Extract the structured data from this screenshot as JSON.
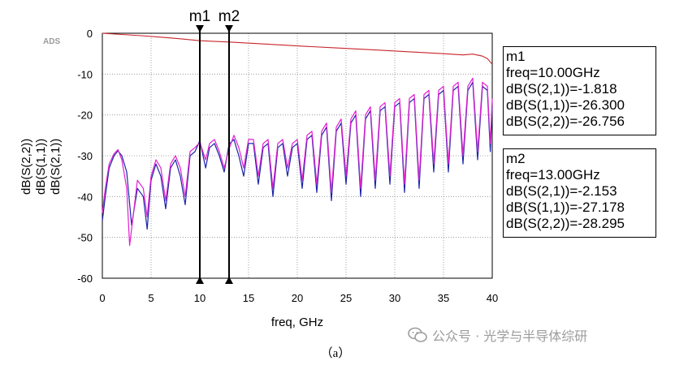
{
  "chart_data": {
    "type": "line",
    "badge": "ADS",
    "xlabel": "freq, GHz",
    "xlim": [
      0,
      40
    ],
    "ylim": [
      -60,
      0
    ],
    "xticks": [
      0,
      5,
      10,
      15,
      20,
      25,
      30,
      35,
      40
    ],
    "yticks": [
      0,
      -10,
      -20,
      -30,
      -40,
      -50,
      -60
    ],
    "legend": [
      "dB(S(2,2))",
      "dB(S(1,1))",
      "dB(S(2,1))"
    ],
    "series": [
      {
        "name": "dB(S(2,1))",
        "color": "#c8242b",
        "x": [
          0,
          2,
          4,
          6,
          8,
          10,
          13,
          16,
          20,
          24,
          28,
          32,
          35,
          37,
          38,
          39,
          39.5,
          40
        ],
        "y": [
          0,
          -0.3,
          -0.6,
          -0.95,
          -1.35,
          -1.818,
          -2.153,
          -2.55,
          -3.1,
          -3.6,
          -4.1,
          -4.6,
          -5.0,
          -5.3,
          -5.1,
          -5.6,
          -6.2,
          -7.6
        ]
      },
      {
        "name": "dB(S(1,1))",
        "color": "#1a24a8",
        "x": [
          0,
          0.3,
          0.7,
          1.2,
          1.6,
          2.0,
          2.5,
          3.0,
          3.6,
          4.2,
          4.6,
          5.0,
          5.5,
          6.0,
          6.5,
          7.0,
          7.5,
          8.0,
          8.5,
          9.0,
          9.5,
          10.0,
          10.6,
          11.0,
          11.5,
          12.0,
          12.5,
          13.0,
          13.5,
          14.0,
          14.5,
          15.0,
          15.5,
          16.0,
          16.5,
          17.0,
          17.5,
          18.0,
          18.5,
          19.0,
          19.5,
          20.0,
          20.5,
          21.0,
          21.5,
          22.0,
          22.5,
          23.0,
          23.5,
          24.0,
          24.5,
          25.0,
          25.5,
          26.0,
          26.5,
          27.0,
          27.5,
          28.0,
          28.5,
          29.0,
          29.5,
          30.0,
          30.5,
          31.0,
          31.5,
          32.0,
          32.5,
          33.0,
          33.5,
          34.0,
          34.5,
          35.0,
          35.5,
          36.0,
          36.5,
          37.0,
          37.5,
          38.0,
          38.5,
          39.0,
          39.5,
          39.8,
          40.0
        ],
        "y": [
          -46,
          -40,
          -33,
          -30,
          -28.8,
          -30,
          -34,
          -47,
          -38,
          -40,
          -48,
          -36,
          -32,
          -35,
          -43,
          -33,
          -31,
          -35,
          -42,
          -30,
          -29,
          -26.3,
          -33,
          -28,
          -27,
          -30,
          -34,
          -27.178,
          -26,
          -30,
          -35,
          -27,
          -27,
          -37,
          -28,
          -27,
          -40,
          -28,
          -27,
          -35,
          -28,
          -27,
          -38,
          -26,
          -25,
          -39,
          -25,
          -23,
          -41,
          -24,
          -22,
          -37,
          -22,
          -20,
          -40,
          -21,
          -19,
          -38,
          -19,
          -18,
          -37,
          -18,
          -17,
          -39,
          -17,
          -16,
          -38,
          -16,
          -15,
          -34,
          -15,
          -14,
          -34,
          -14,
          -13,
          -32,
          -14,
          -12,
          -31,
          -13,
          -14,
          -29,
          -18
        ]
      },
      {
        "name": "dB(S(2,2))",
        "color": "#e21fd0",
        "x": [
          0,
          0.3,
          0.7,
          1.2,
          1.6,
          2.0,
          2.5,
          2.8,
          3.6,
          4.2,
          4.6,
          5.0,
          5.5,
          6.0,
          6.5,
          7.0,
          7.5,
          8.0,
          8.5,
          9.0,
          9.5,
          10.0,
          10.6,
          11.0,
          11.5,
          12.0,
          12.5,
          13.0,
          13.5,
          14.0,
          14.5,
          15.0,
          15.5,
          16.0,
          16.5,
          17.0,
          17.5,
          18.0,
          18.5,
          19.0,
          19.5,
          20.0,
          20.5,
          21.0,
          21.5,
          22.0,
          22.5,
          23.0,
          23.5,
          24.0,
          24.5,
          25.0,
          25.5,
          26.0,
          26.5,
          27.0,
          27.5,
          28.0,
          28.5,
          29.0,
          29.5,
          30.0,
          30.5,
          31.0,
          31.5,
          32.0,
          32.5,
          33.0,
          33.5,
          34.0,
          34.5,
          35.0,
          35.5,
          36.0,
          36.5,
          37.0,
          37.5,
          38.0,
          38.5,
          39.0,
          39.5,
          39.8,
          40.0
        ],
        "y": [
          -44,
          -38,
          -32,
          -29.5,
          -28.5,
          -31,
          -38,
          -52,
          -36,
          -38,
          -45,
          -35,
          -31,
          -33,
          -41,
          -32,
          -30,
          -33,
          -40,
          -29,
          -28,
          -26.756,
          -31,
          -27,
          -26,
          -29,
          -33,
          -28.295,
          -25,
          -28,
          -33,
          -26,
          -26,
          -35,
          -27,
          -26,
          -38,
          -27,
          -26,
          -33,
          -27,
          -26,
          -36,
          -25,
          -24,
          -37,
          -24,
          -22,
          -39,
          -23,
          -21,
          -35,
          -21,
          -19,
          -38,
          -20,
          -18,
          -36,
          -18,
          -17,
          -35,
          -17,
          -16,
          -37,
          -16,
          -15,
          -36,
          -15,
          -14,
          -32,
          -14,
          -13,
          -32,
          -13,
          -12,
          -30,
          -13,
          -11,
          -29,
          -12,
          -13,
          -27,
          -16
        ]
      }
    ],
    "markers": [
      {
        "label": "m1",
        "freq": 10.0,
        "lines": [
          "m1",
          "freq=10.00GHz",
          "dB(S(2,1))=-1.818",
          "dB(S(1,1))=-26.300",
          "dB(S(2,2))=-26.756"
        ]
      },
      {
        "label": "m2",
        "freq": 13.0,
        "lines": [
          "m2",
          "freq=13.00GHz",
          "dB(S(2,1))=-2.153",
          "dB(S(1,1))=-27.178",
          "dB(S(2,2))=-28.295"
        ]
      }
    ],
    "caption": "（a）"
  },
  "watermark": {
    "text": "公众号 · 光学与半导体综研",
    "icon": "wechat-icon"
  },
  "colors": {
    "s21": "#c8242b",
    "s11": "#1a24a8",
    "s22": "#e21fd0",
    "grid": "#8c8c8c"
  }
}
